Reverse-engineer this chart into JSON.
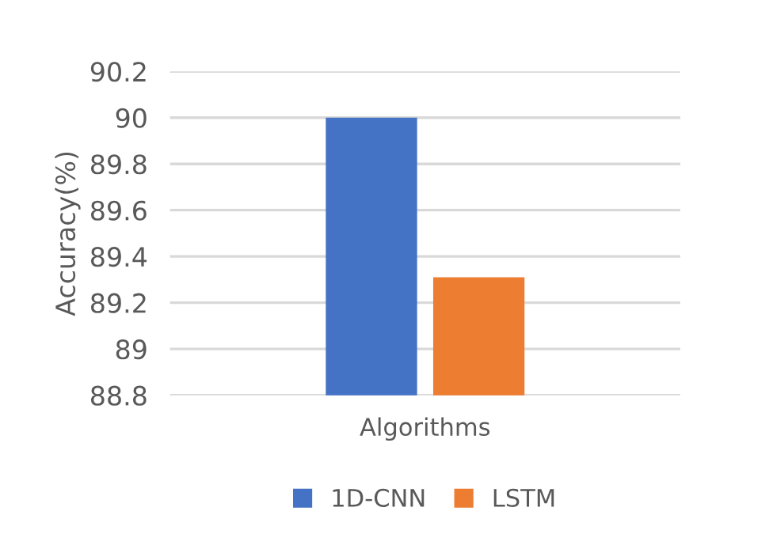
{
  "chart_data": {
    "type": "bar",
    "ylabel": "Accuracy(%)",
    "categories": [
      "Algorithms"
    ],
    "series": [
      {
        "name": "1D-CNN",
        "color": "#4472c4",
        "values": [
          90
        ]
      },
      {
        "name": "LSTM",
        "color": "#ed7d31",
        "values": [
          89.31
        ]
      }
    ],
    "ylim": [
      88.8,
      90.2
    ],
    "yticks": [
      {
        "value": 88.8,
        "label": "88.8"
      },
      {
        "value": 89,
        "label": "89"
      },
      {
        "value": 89.2,
        "label": "89.2"
      },
      {
        "value": 89.4,
        "label": "89.4"
      },
      {
        "value": 89.6,
        "label": "89.6"
      },
      {
        "value": 89.8,
        "label": "89.8"
      },
      {
        "value": 90,
        "label": "90"
      },
      {
        "value": 90.2,
        "label": "90.2"
      }
    ],
    "grid": "y",
    "legend": "bottom"
  }
}
